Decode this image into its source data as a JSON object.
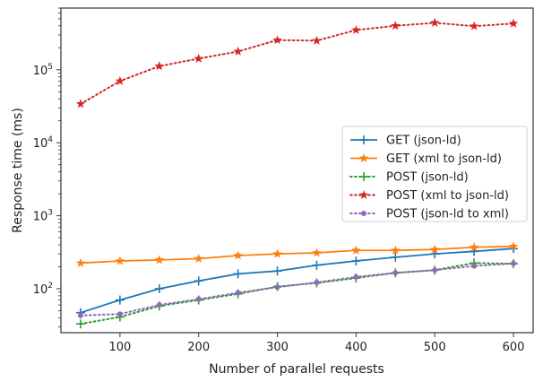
{
  "chart_data": {
    "type": "line",
    "title": "",
    "xlabel": "Number of parallel requests",
    "ylabel": "Response time (ms)",
    "yscale": "log",
    "xlim": [
      25,
      625
    ],
    "ylim": [
      25,
      700000
    ],
    "xticks": [
      100,
      200,
      300,
      400,
      500,
      600
    ],
    "xtick_labels": [
      "100",
      "200",
      "300",
      "400",
      "500",
      "600"
    ],
    "yticks": [
      100,
      1000,
      10000,
      100000
    ],
    "ytick_exponents": [
      "2",
      "3",
      "4",
      "5"
    ],
    "ytick_base": "10",
    "grid": false,
    "legend_position": "center-right",
    "x": [
      50,
      100,
      150,
      200,
      250,
      300,
      350,
      400,
      450,
      500,
      550,
      600
    ],
    "series": [
      {
        "name": "GET (json-ld)",
        "color": "#1f77b4",
        "line_style": "solid",
        "marker": "plus",
        "values": [
          47,
          70,
          100,
          128,
          160,
          175,
          210,
          240,
          270,
          300,
          325,
          355
        ]
      },
      {
        "name": "GET (xml to json-ld)",
        "color": "#ff7f0e",
        "line_style": "solid",
        "marker": "star",
        "values": [
          225,
          240,
          248,
          258,
          285,
          300,
          310,
          335,
          335,
          345,
          370,
          380
        ]
      },
      {
        "name": "POST (json-ld)",
        "color": "#2ca02c",
        "line_style": "dotted",
        "marker": "plus",
        "values": [
          33,
          41,
          58,
          70,
          85,
          107,
          120,
          140,
          165,
          180,
          225,
          220
        ]
      },
      {
        "name": "POST (xml to json-ld)",
        "color": "#d62728",
        "line_style": "dotted",
        "marker": "star",
        "values": [
          34000,
          70000,
          112000,
          142000,
          178000,
          255000,
          250000,
          350000,
          400000,
          440000,
          395000,
          430000
        ]
      },
      {
        "name": "POST (json-ld to xml)",
        "color": "#9467bd",
        "line_style": "dotted",
        "marker": "circle",
        "values": [
          43,
          45,
          60,
          72,
          88,
          105,
          122,
          145,
          165,
          180,
          205,
          222
        ]
      }
    ]
  }
}
